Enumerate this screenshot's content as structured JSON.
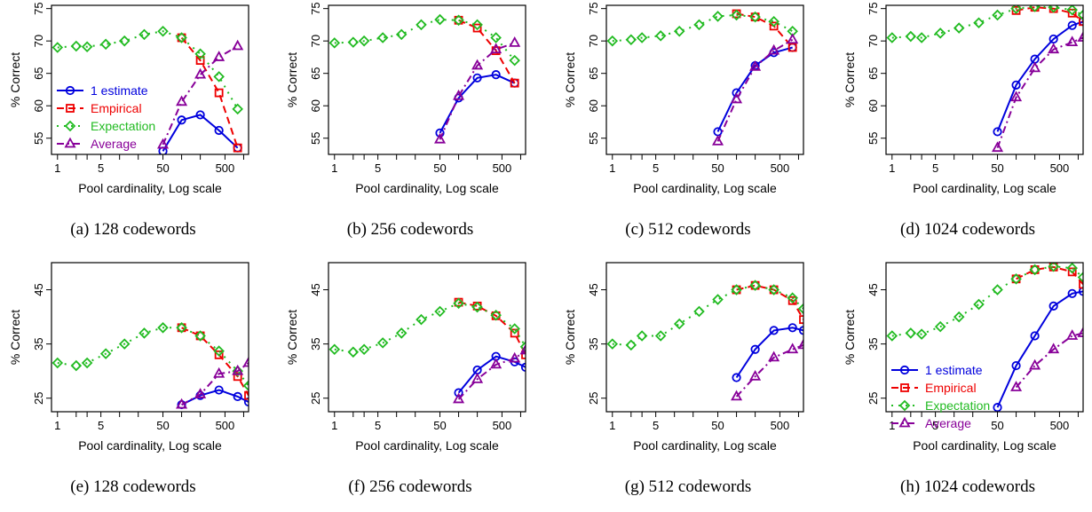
{
  "figure": {
    "series_style": {
      "1 estimate": {
        "color": "#0000dd",
        "dash": "",
        "marker": "circle"
      },
      "Empirical": {
        "color": "#ee0000",
        "dash": "8,5",
        "marker": "square"
      },
      "Expectation": {
        "color": "#22bb22",
        "dash": "2,6",
        "marker": "diamond"
      },
      "Average": {
        "color": "#880099",
        "dash": "8,4,2,4",
        "marker": "triangle"
      }
    }
  },
  "chart_data": [
    {
      "type": "line",
      "caption": "(a)  128 codewords",
      "xlabel": "Pool cardinality, Log scale",
      "ylabel": "% Correct",
      "xscale": "log",
      "xlim": [
        0.8,
        1200
      ],
      "ylim": [
        52.5,
        75.5
      ],
      "xticks": [
        1,
        5,
        50,
        500
      ],
      "yticks": [
        55,
        60,
        65,
        70,
        75
      ],
      "legend": "left",
      "series": [
        {
          "name": "1 estimate",
          "x": [
            50,
            100,
            200,
            400,
            800
          ],
          "y": [
            53.0,
            57.8,
            58.6,
            56.2,
            53.5
          ]
        },
        {
          "name": "Empirical",
          "x": [
            100,
            200,
            400,
            800
          ],
          "y": [
            70.5,
            67.0,
            62.0,
            53.5
          ]
        },
        {
          "name": "Expectation",
          "x": [
            1,
            2,
            3,
            6,
            12,
            25,
            50,
            100,
            200,
            400,
            800
          ],
          "y": [
            69.0,
            69.2,
            69.1,
            69.5,
            70.0,
            71.0,
            71.5,
            70.5,
            68.0,
            64.5,
            59.5
          ]
        },
        {
          "name": "Average",
          "x": [
            50,
            100,
            200,
            400,
            800
          ],
          "y": [
            54.0,
            60.6,
            64.8,
            67.5,
            69.2
          ]
        }
      ]
    },
    {
      "type": "line",
      "caption": "(b)  256 codewords",
      "xlabel": "Pool cardinality, Log scale",
      "ylabel": "% Correct",
      "xscale": "log",
      "xlim": [
        0.8,
        1200
      ],
      "ylim": [
        52.5,
        75.5
      ],
      "xticks": [
        1,
        5,
        50,
        500
      ],
      "yticks": [
        55,
        60,
        65,
        70,
        75
      ],
      "legend": "",
      "series": [
        {
          "name": "1 estimate",
          "x": [
            50,
            100,
            200,
            400,
            800
          ],
          "y": [
            55.8,
            61.2,
            64.3,
            64.8,
            63.5
          ]
        },
        {
          "name": "Empirical",
          "x": [
            100,
            200,
            400,
            800
          ],
          "y": [
            73.2,
            72.0,
            68.5,
            63.5
          ]
        },
        {
          "name": "Expectation",
          "x": [
            1,
            2,
            3,
            6,
            12,
            25,
            50,
            100,
            200,
            400,
            800
          ],
          "y": [
            69.7,
            69.8,
            70.0,
            70.5,
            71.0,
            72.5,
            73.3,
            73.2,
            72.5,
            70.5,
            67.0
          ]
        },
        {
          "name": "Average",
          "x": [
            50,
            100,
            200,
            400,
            800
          ],
          "y": [
            54.8,
            61.5,
            66.2,
            68.7,
            69.7
          ]
        }
      ]
    },
    {
      "type": "line",
      "caption": "(c)  512 codewords",
      "xlabel": "Pool cardinality, Log scale",
      "ylabel": "% Correct",
      "xscale": "log",
      "xlim": [
        0.8,
        1200
      ],
      "ylim": [
        52.5,
        75.5
      ],
      "xticks": [
        1,
        5,
        50,
        500
      ],
      "yticks": [
        55,
        60,
        65,
        70,
        75
      ],
      "legend": "",
      "series": [
        {
          "name": "1 estimate",
          "x": [
            50,
            100,
            200,
            400,
            800
          ],
          "y": [
            56.0,
            62.0,
            66.2,
            68.2,
            69.0
          ]
        },
        {
          "name": "Empirical",
          "x": [
            100,
            200,
            400,
            800
          ],
          "y": [
            74.2,
            73.7,
            72.3,
            69.0
          ]
        },
        {
          "name": "Expectation",
          "x": [
            1,
            2,
            3,
            6,
            12,
            25,
            50,
            100,
            200,
            400,
            800
          ],
          "y": [
            70.0,
            70.2,
            70.5,
            70.8,
            71.5,
            72.5,
            73.8,
            74.0,
            73.7,
            73.0,
            71.5
          ]
        },
        {
          "name": "Average",
          "x": [
            50,
            100,
            200,
            400,
            800
          ],
          "y": [
            54.5,
            61.0,
            66.0,
            68.5,
            70.2
          ]
        }
      ]
    },
    {
      "type": "line",
      "caption": "(d)  1024 codewords",
      "xlabel": "Pool cardinality, Log scale",
      "ylabel": "% Correct",
      "xscale": "log",
      "xlim": [
        0.8,
        1200
      ],
      "ylim": [
        52.5,
        75.5
      ],
      "xticks": [
        1,
        5,
        50,
        500
      ],
      "yticks": [
        55,
        60,
        65,
        70,
        75
      ],
      "legend": "",
      "series": [
        {
          "name": "1 estimate",
          "x": [
            50,
            100,
            200,
            400,
            800,
            1200
          ],
          "y": [
            56.0,
            63.2,
            67.2,
            70.3,
            72.4,
            73.0
          ]
        },
        {
          "name": "Empirical",
          "x": [
            100,
            200,
            400,
            800,
            1200
          ],
          "y": [
            74.7,
            75.2,
            75.0,
            74.3,
            73.0
          ]
        },
        {
          "name": "Expectation",
          "x": [
            1,
            2,
            3,
            6,
            12,
            25,
            50,
            100,
            200,
            400,
            800,
            1200
          ],
          "y": [
            70.5,
            70.7,
            70.5,
            71.2,
            72.0,
            72.8,
            74.0,
            75.0,
            75.3,
            75.2,
            74.8,
            74.0
          ]
        },
        {
          "name": "Average",
          "x": [
            50,
            100,
            200,
            400,
            800,
            1200
          ],
          "y": [
            53.5,
            61.3,
            65.8,
            68.7,
            69.8,
            70.5
          ]
        }
      ]
    },
    {
      "type": "line",
      "caption": "(e)  128 codewords",
      "xlabel": "Pool cardinality, Log scale",
      "ylabel": "% Correct",
      "xscale": "log",
      "xlim": [
        0.8,
        1200
      ],
      "ylim": [
        22.5,
        50
      ],
      "xticks": [
        1,
        5,
        50,
        500
      ],
      "yticks": [
        25,
        35,
        45
      ],
      "legend": "",
      "series": [
        {
          "name": "1 estimate",
          "x": [
            100,
            200,
            400,
            800,
            1200
          ],
          "y": [
            23.8,
            25.5,
            26.5,
            25.3,
            24.3
          ]
        },
        {
          "name": "Empirical",
          "x": [
            100,
            200,
            400,
            800,
            1200
          ],
          "y": [
            38.0,
            36.5,
            33.0,
            29.0,
            25.5
          ]
        },
        {
          "name": "Expectation",
          "x": [
            1,
            2,
            3,
            6,
            12,
            25,
            50,
            100,
            200,
            400,
            800,
            1200
          ],
          "y": [
            31.5,
            31.0,
            31.5,
            33.2,
            35.0,
            37.0,
            38.0,
            38.0,
            36.5,
            33.7,
            30.0,
            27.3
          ]
        },
        {
          "name": "Average",
          "x": [
            100,
            200,
            400,
            800,
            1200
          ],
          "y": [
            23.8,
            25.7,
            29.5,
            30.0,
            31.5
          ]
        }
      ]
    },
    {
      "type": "line",
      "caption": "(f)  256 codewords",
      "xlabel": "Pool cardinality, Log scale",
      "ylabel": "% Correct",
      "xscale": "log",
      "xlim": [
        0.8,
        1200
      ],
      "ylim": [
        22.5,
        50
      ],
      "xticks": [
        1,
        5,
        50,
        500
      ],
      "yticks": [
        25,
        35,
        45
      ],
      "legend": "",
      "series": [
        {
          "name": "1 estimate",
          "x": [
            100,
            200,
            400,
            800,
            1200
          ],
          "y": [
            26.0,
            30.2,
            32.7,
            31.7,
            30.7
          ]
        },
        {
          "name": "Empirical",
          "x": [
            100,
            200,
            400,
            800,
            1200
          ],
          "y": [
            42.7,
            42.0,
            40.2,
            37.0,
            33.0
          ]
        },
        {
          "name": "Expectation",
          "x": [
            1,
            2,
            3,
            6,
            12,
            25,
            50,
            100,
            200,
            400,
            800,
            1200
          ],
          "y": [
            34.0,
            33.5,
            34.0,
            35.2,
            37.0,
            39.5,
            41.0,
            42.5,
            41.8,
            40.3,
            37.8,
            34.5
          ]
        },
        {
          "name": "Average",
          "x": [
            100,
            200,
            400,
            800,
            1200
          ],
          "y": [
            24.8,
            28.5,
            31.2,
            32.3,
            33.8
          ]
        }
      ]
    },
    {
      "type": "line",
      "caption": "(g)  512 codewords",
      "xlabel": "Pool cardinality, Log scale",
      "ylabel": "% Correct",
      "xscale": "log",
      "xlim": [
        0.8,
        1200
      ],
      "ylim": [
        22.5,
        50
      ],
      "xticks": [
        1,
        5,
        50,
        500
      ],
      "yticks": [
        25,
        35,
        45
      ],
      "legend": "",
      "series": [
        {
          "name": "1 estimate",
          "x": [
            100,
            200,
            400,
            800,
            1200
          ],
          "y": [
            28.8,
            34.0,
            37.5,
            38.0,
            37.5
          ]
        },
        {
          "name": "Empirical",
          "x": [
            100,
            200,
            400,
            800,
            1200
          ],
          "y": [
            45.0,
            45.8,
            45.0,
            43.0,
            39.5
          ]
        },
        {
          "name": "Expectation",
          "x": [
            1,
            2,
            3,
            6,
            12,
            25,
            50,
            100,
            200,
            400,
            800,
            1200
          ],
          "y": [
            35.0,
            34.8,
            36.5,
            36.5,
            38.7,
            41.0,
            43.2,
            45.0,
            45.8,
            45.0,
            43.5,
            41.5
          ]
        },
        {
          "name": "Average",
          "x": [
            100,
            200,
            400,
            800,
            1200
          ],
          "y": [
            25.3,
            29.0,
            32.5,
            34.0,
            34.8
          ]
        }
      ]
    },
    {
      "type": "line",
      "caption": "(h)  1024 codewords",
      "xlabel": "Pool cardinality, Log scale",
      "ylabel": "% Correct",
      "xscale": "log",
      "xlim": [
        0.8,
        1200
      ],
      "ylim": [
        22.5,
        50
      ],
      "xticks": [
        1,
        5,
        50,
        500
      ],
      "yticks": [
        25,
        35,
        45
      ],
      "legend": "left",
      "series": [
        {
          "name": "1 estimate",
          "x": [
            50,
            100,
            200,
            400,
            800,
            1200
          ],
          "y": [
            23.3,
            31.0,
            36.5,
            42.0,
            44.3,
            44.7
          ]
        },
        {
          "name": "Empirical",
          "x": [
            100,
            200,
            400,
            800,
            1200
          ],
          "y": [
            47.0,
            48.7,
            49.2,
            48.3,
            46.0
          ]
        },
        {
          "name": "Expectation",
          "x": [
            1,
            2,
            3,
            6,
            12,
            25,
            50,
            100,
            200,
            400,
            800,
            1200
          ],
          "y": [
            36.5,
            37.0,
            36.8,
            38.2,
            40.0,
            42.3,
            45.0,
            47.0,
            48.7,
            49.3,
            49.0,
            47.3
          ]
        },
        {
          "name": "Average",
          "x": [
            100,
            200,
            400,
            800,
            1200
          ],
          "y": [
            27.0,
            31.0,
            34.0,
            36.5,
            37.0
          ]
        }
      ]
    }
  ]
}
